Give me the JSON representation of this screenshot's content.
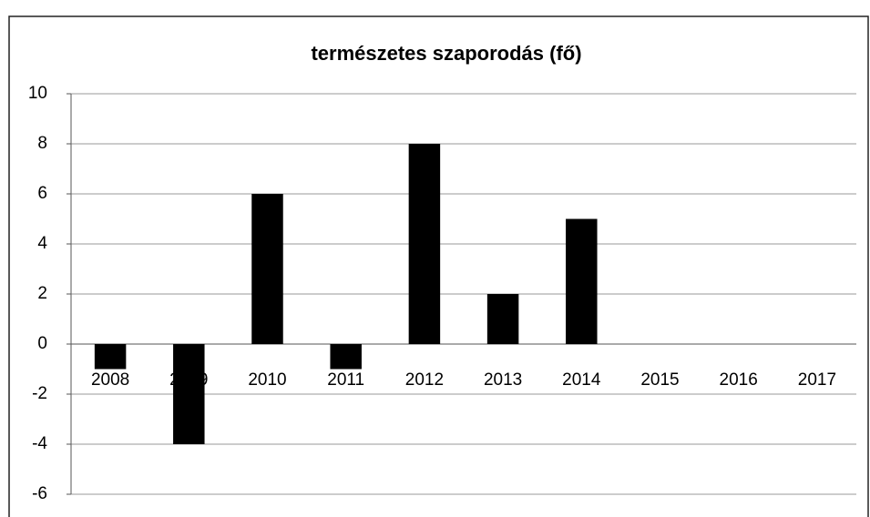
{
  "chart_data": {
    "type": "bar",
    "title": "természetes szaporodás (fő)",
    "categories": [
      "2008",
      "2009",
      "2010",
      "2011",
      "2012",
      "2013",
      "2014",
      "2015",
      "2016",
      "2017"
    ],
    "values": [
      -1,
      -4,
      6,
      -1,
      8,
      2,
      5,
      null,
      null,
      null
    ],
    "color": "#000000",
    "ylim": [
      -6,
      10
    ],
    "yticks": [
      -6,
      -4,
      -2,
      0,
      2,
      4,
      6,
      8,
      10
    ],
    "grid": true
  }
}
